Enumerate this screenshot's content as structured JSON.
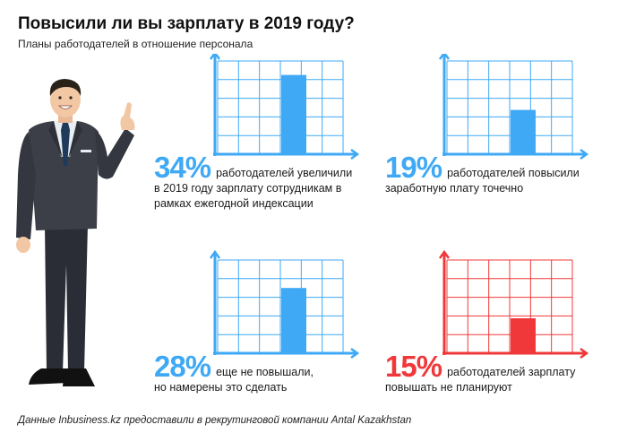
{
  "title": "Повысили ли вы зарплату в 2019 году?",
  "subtitle": "Планы работодателей в отношение персонала",
  "footer": "Данные Inbusiness.kz предоставили в рекрутинговой компании Antal Kazakhstan",
  "colors": {
    "blue": "#3fa9f5",
    "red": "#f0383a",
    "text": "#1a1a1a"
  },
  "chart_data": {
    "type": "bar",
    "ylim": [
      0,
      40
    ],
    "panels": [
      {
        "value": 34,
        "label": "34%",
        "line1": "работодателей увеличили",
        "line2": "в 2019 году зарплату сотрудникам в",
        "line3": "рамках ежегодной индексации",
        "color": "#3fa9f5"
      },
      {
        "value": 19,
        "label": "19%",
        "line1": "работодателей повысили",
        "line2": "заработную плату точечно",
        "line3": "",
        "color": "#3fa9f5"
      },
      {
        "value": 28,
        "label": "28%",
        "line1": "еще не повышали,",
        "line2": "но намерены это сделать",
        "line3": "",
        "color": "#3fa9f5"
      },
      {
        "value": 15,
        "label": "15%",
        "line1": "работодателей зарплату",
        "line2": "повышать не планируют",
        "line3": "",
        "color": "#f0383a"
      }
    ]
  }
}
